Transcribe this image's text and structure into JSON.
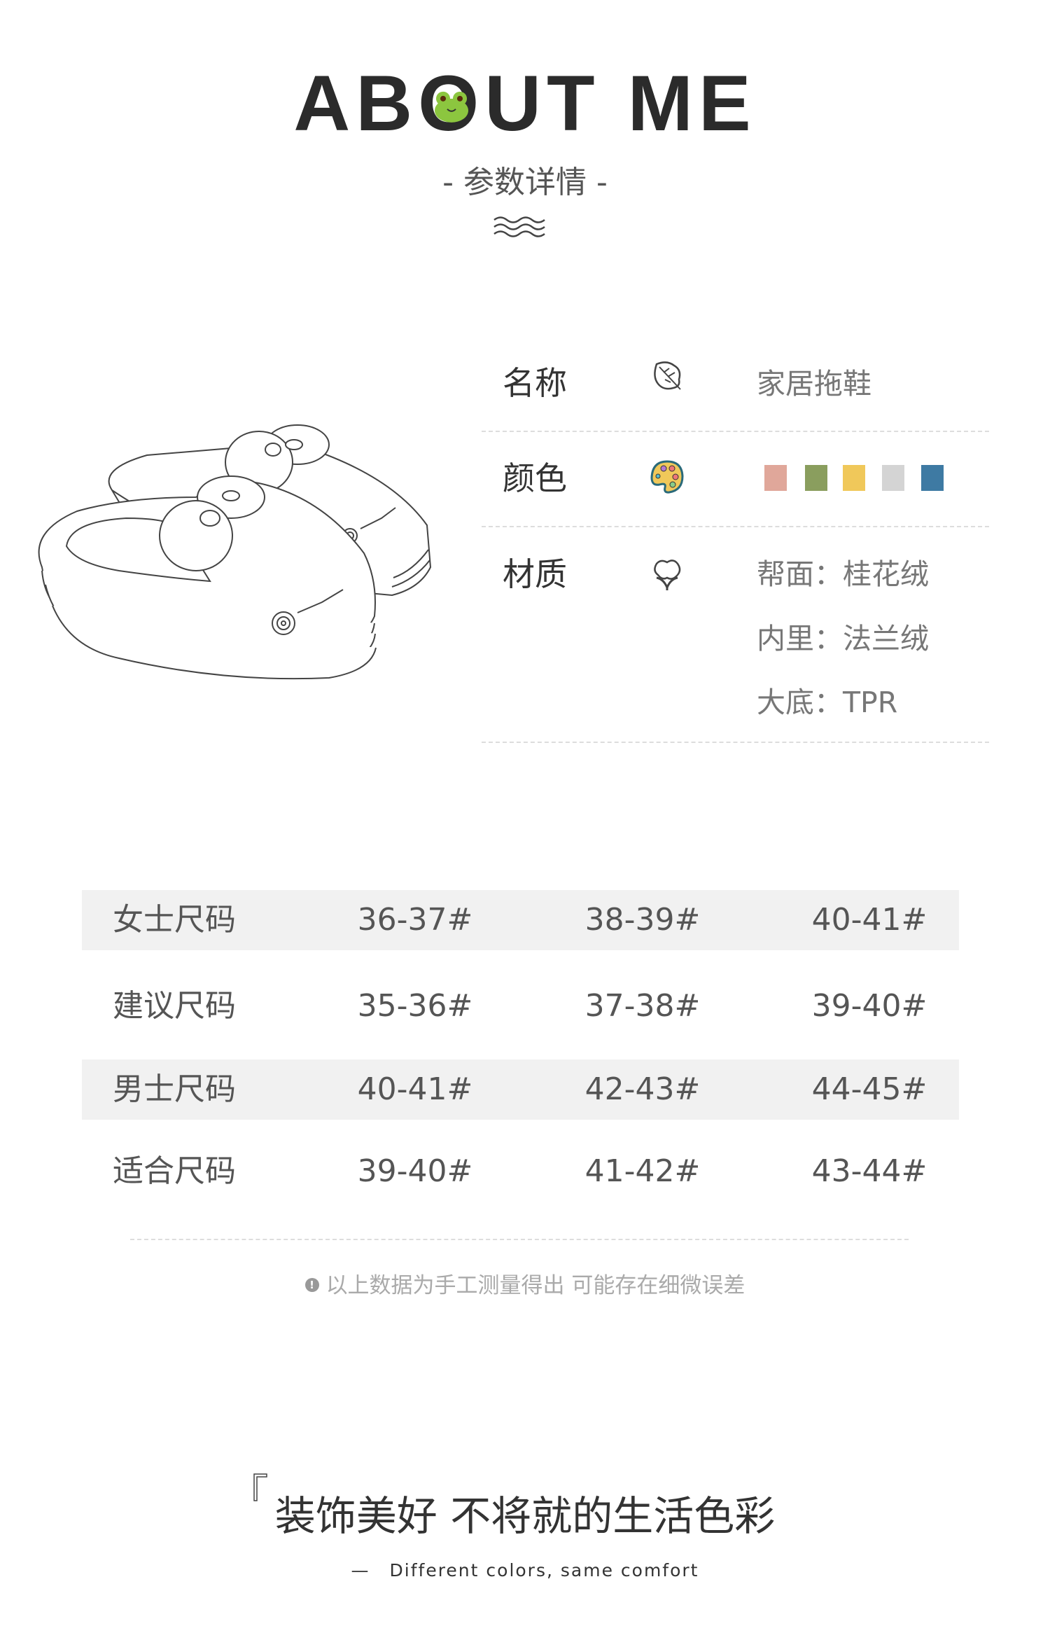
{
  "header": {
    "title": "ABOUT ME",
    "subtitle": "- 参数详情 -",
    "logo_icon": "frog-face-icon",
    "divider_icon": "wave-icon"
  },
  "product_image": "slipper-line-drawing",
  "specs": [
    {
      "label": "名称",
      "icon": "leaf-icon",
      "value": "家居拖鞋"
    },
    {
      "label": "颜色",
      "icon": "palette-icon",
      "colors": [
        "#e0a79a",
        "#8a9e5e",
        "#f0c85a",
        "#d4d4d4",
        "#3e7aa3"
      ]
    },
    {
      "label": "材质",
      "icon": "cotton-icon",
      "values": [
        "帮面：桂花绒",
        "内里：法兰绒",
        "大底：TPR"
      ]
    }
  ],
  "size_table": {
    "rows": [
      [
        "女士尺码",
        "36-37#",
        "38-39#",
        "40-41#"
      ],
      [
        "建议尺码",
        "35-36#",
        "37-38#",
        "39-40#"
      ],
      [
        "男士尺码",
        "40-41#",
        "42-43#",
        "44-45#"
      ],
      [
        "适合尺码",
        "39-40#",
        "41-42#",
        "43-44#"
      ]
    ]
  },
  "note": {
    "icon": "exclamation-icon",
    "text": "以上数据为手工测量得出 可能存在细微误差"
  },
  "slogan": {
    "text": "装饰美好 不将就的生活色彩",
    "english_dash": "—",
    "english": "Different colors, same comfort"
  }
}
